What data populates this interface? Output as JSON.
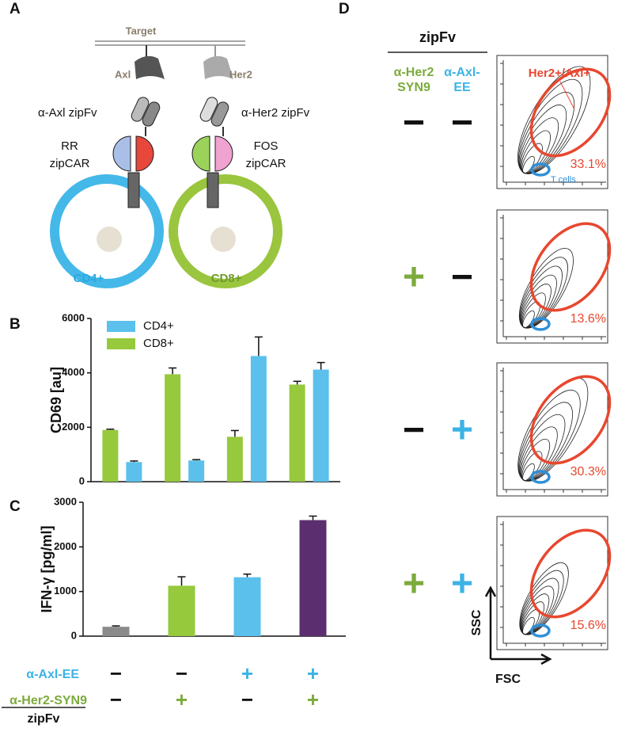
{
  "panel_a": {
    "label": "A",
    "target": "Target",
    "axl": "Axl",
    "her2": "Her2",
    "axl_zipfv": "α-Axl zipFv",
    "her2_zipfv": "α-Her2 zipFv",
    "rr_zipcar": [
      "RR",
      "zipCAR"
    ],
    "fos_zipcar": [
      "FOS",
      "zipCAR"
    ],
    "cd4": "CD4+",
    "cd8": "CD8+"
  },
  "chart_data": [
    {
      "type": "bar",
      "panel_label": "B",
      "ylabel": "CD69 [au]",
      "categories": [
        null,
        null,
        null,
        null
      ],
      "series": [
        {
          "name": "CD8+",
          "color": "#97c93d",
          "values": [
            1900,
            3950,
            1650,
            3570
          ],
          "errors": [
            30,
            230,
            230,
            120
          ]
        },
        {
          "name": "CD4+",
          "color": "#5bc0eb",
          "values": [
            720,
            780,
            4620,
            4120
          ],
          "errors": [
            40,
            30,
            700,
            260
          ]
        }
      ],
      "ylim": [
        0,
        6000
      ],
      "yticks": [
        0,
        2000,
        4000,
        6000
      ],
      "legend": "upper left"
    },
    {
      "type": "bar",
      "panel_label": "C",
      "ylabel": "IFN-γ [pg/ml]",
      "categories": [
        null,
        null,
        null,
        null
      ],
      "values": [
        210,
        1130,
        1320,
        2600
      ],
      "errors": [
        20,
        200,
        70,
        90
      ],
      "colors": [
        "#8a8a8a",
        "#97c93d",
        "#5bc0eb",
        "#5b2f6f"
      ],
      "ylim": [
        0,
        3000
      ],
      "yticks": [
        0,
        1000,
        2000,
        3000
      ]
    }
  ],
  "panel_c_conditions": {
    "rows": [
      {
        "name": "α-Axl-EE",
        "color": "#3bb3e6",
        "signs": [
          "−",
          "−",
          "+",
          "+"
        ]
      },
      {
        "name": "α-Her2-SYN9",
        "color": "#7cab3c",
        "signs": [
          "−",
          "+",
          "−",
          "+"
        ]
      }
    ],
    "footer": "zipFv"
  },
  "panel_d": {
    "label": "D",
    "header": "zipFv",
    "columns": [
      {
        "name": [
          "α-Her2",
          "SYN9"
        ],
        "color": "#7cab3c"
      },
      {
        "name": [
          "α-Axl-",
          "EE"
        ],
        "color": "#3bb3e6"
      }
    ],
    "gate_label": "Her2+/Axl+",
    "tcell_label": "T cells",
    "xlabel": "FSC",
    "ylabel": "SSC",
    "plots": [
      {
        "signs": [
          "−",
          "−"
        ],
        "percent": "33.1%"
      },
      {
        "signs": [
          "+",
          "−"
        ],
        "percent": "13.6%"
      },
      {
        "signs": [
          "−",
          "+"
        ],
        "percent": "30.3%"
      },
      {
        "signs": [
          "+",
          "+"
        ],
        "percent": "15.6%"
      }
    ]
  }
}
